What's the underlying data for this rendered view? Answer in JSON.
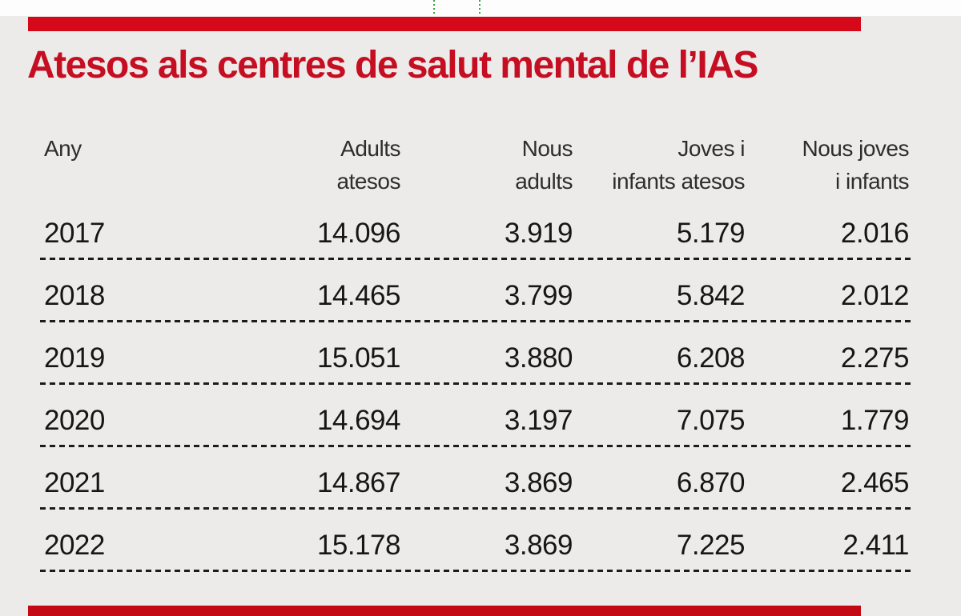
{
  "title": "Atesos als centres de salut mental de l’IAS",
  "colors": {
    "background": "#edebe9",
    "top_strip": "#fdfdfd",
    "accent_bar": "#d6091b",
    "bottom_bar": "#c30a14",
    "title_text": "#c60e22",
    "header_text": "#2e2d2b",
    "value_text": "#171615",
    "divider": "#1d1c1b",
    "guide_mark_green": "#3aa23e"
  },
  "table": {
    "headers": [
      {
        "line1": "Any",
        "line2": ""
      },
      {
        "line1": "Adults",
        "line2": "atesos"
      },
      {
        "line1": "Nous",
        "line2": "adults"
      },
      {
        "line1": "Joves i",
        "line2": "infants atesos"
      },
      {
        "line1": "Nous joves",
        "line2": "i infants"
      }
    ]
  },
  "chart_data": {
    "type": "table",
    "title": "Atesos als centres de salut mental de l’IAS",
    "columns": [
      "Any",
      "Adults atesos",
      "Nous adults",
      "Joves i infants atesos",
      "Nous joves i infants"
    ],
    "rows": [
      [
        "2017",
        "14.096",
        "3.919",
        "5.179",
        "2.016"
      ],
      [
        "2018",
        "14.465",
        "3.799",
        "5.842",
        "2.012"
      ],
      [
        "2019",
        "15.051",
        "3.880",
        "6.208",
        "2.275"
      ],
      [
        "2020",
        "14.694",
        "3.197",
        "7.075",
        "1.779"
      ],
      [
        "2021",
        "14.867",
        "3.869",
        "6.870",
        "2.465"
      ],
      [
        "2022",
        "15.178",
        "3.869",
        "7.225",
        "2.411"
      ]
    ]
  }
}
